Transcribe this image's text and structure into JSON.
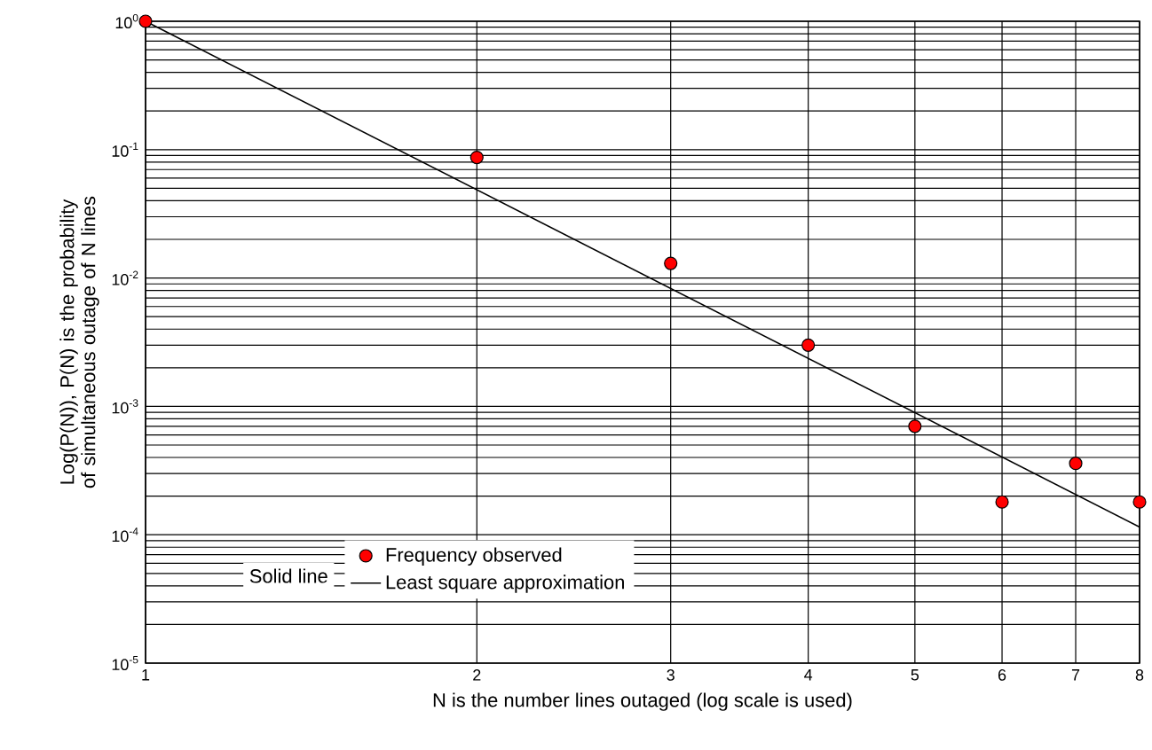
{
  "chart_data": {
    "type": "scatter",
    "log": "xy",
    "grid": true,
    "legend": "bottom left",
    "marker": "circle",
    "xlabel": "N is the number lines outaged (log scale is used)",
    "ylabel": "Log(P(N)), P(N) is the probability of simultaneous outage of N lines",
    "xlim": [
      1,
      8
    ],
    "xticks": [
      1,
      2,
      3,
      4,
      5,
      6,
      7,
      8
    ],
    "ylim": [
      1e-05,
      1
    ],
    "yticks": [
      {
        "value": 1e-05,
        "label": "10$^{-5}$"
      },
      {
        "value": 0.0001,
        "label": "10$^{-4}$"
      },
      {
        "value": 0.001,
        "label": "10$^{-3}$"
      },
      {
        "value": 0.01,
        "label": "10$^{-2}$"
      },
      {
        "value": 0.1,
        "label": "10$^{-1}$"
      },
      {
        "value": 1,
        "label": "10$^{0}$"
      }
    ],
    "annotations": [
      "Solid line"
    ],
    "series": [
      {
        "name": "Frequency observed",
        "color": "#ff0000",
        "x": [
          1,
          2,
          3,
          4,
          5,
          6,
          7,
          8
        ],
        "values": [
          1,
          0.087,
          0.013,
          0.003,
          0.0007,
          0.00018,
          0.00036,
          0.00018
        ]
      },
      {
        "name": "Least square approximation",
        "type": "line",
        "color": "#000000",
        "line_style": "solid",
        "marker": "none",
        "x": [
          1,
          8
        ],
        "values": [
          1,
          0.000115
        ]
      }
    ]
  }
}
